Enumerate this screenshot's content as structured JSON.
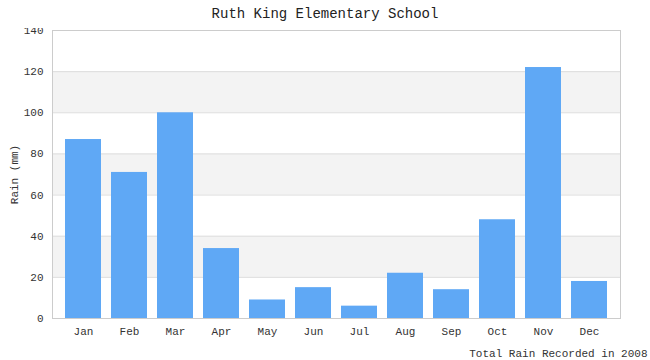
{
  "chart_data": {
    "type": "bar",
    "title": "Ruth King Elementary School",
    "y_label": "Rain (mm)",
    "x_label": "Total Rain Recorded in 2008",
    "categories": [
      "Jan",
      "Feb",
      "Mar",
      "Apr",
      "May",
      "Jun",
      "Jul",
      "Aug",
      "Sep",
      "Oct",
      "Nov",
      "Dec"
    ],
    "values": [
      87,
      71,
      100,
      34,
      9,
      15,
      6,
      22,
      14,
      48,
      122,
      18
    ],
    "color": "#5fa8f5",
    "ylim": [
      0,
      140
    ],
    "yticks": [
      0,
      20,
      40,
      60,
      80,
      100,
      120,
      140
    ],
    "grid": true
  }
}
